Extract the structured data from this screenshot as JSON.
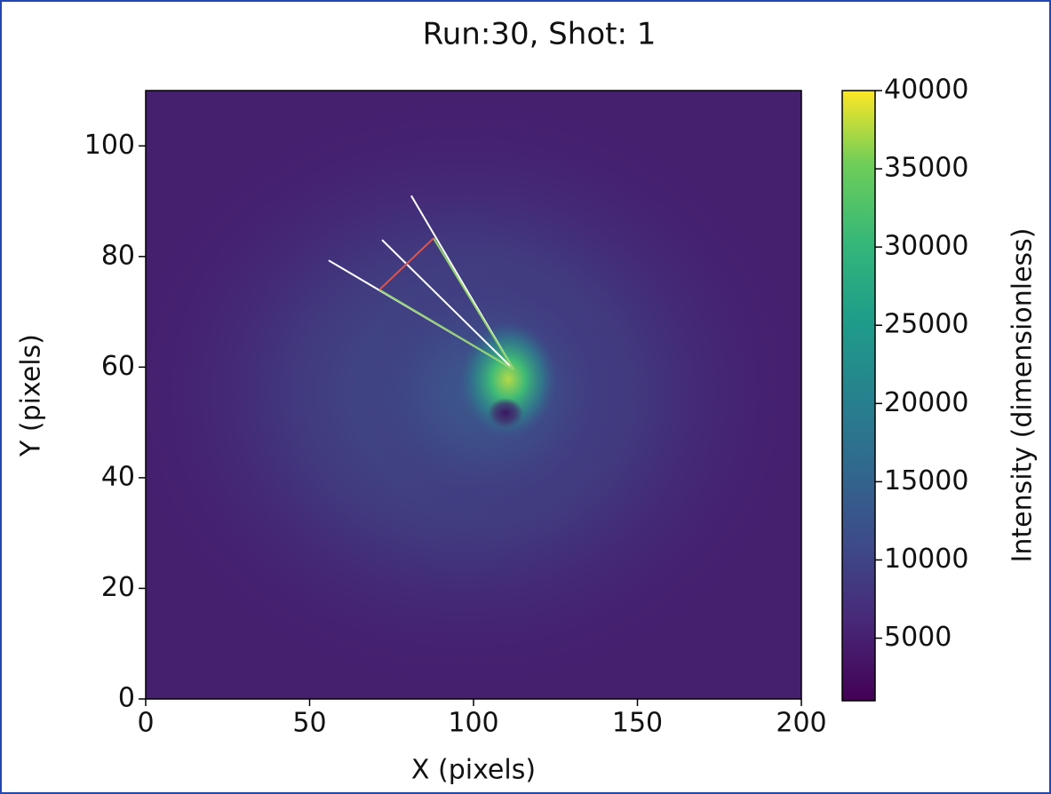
{
  "chart_data": {
    "type": "heatmap",
    "title": "Run:30, Shot: 1",
    "x_label": "X (pixels)",
    "y_label": "Y (pixels)",
    "xlim": [
      0,
      200
    ],
    "ylim": [
      0,
      110
    ],
    "xticks": [
      0,
      50,
      100,
      150,
      200
    ],
    "yticks": [
      0,
      20,
      40,
      60,
      80,
      100
    ],
    "colormap": "viridis",
    "colorbar_label": "Intensity (dimensionless)",
    "clim": [
      1000,
      40000
    ],
    "colorbar_ticks": [
      5000,
      10000,
      15000,
      20000,
      25000,
      30000,
      35000,
      40000
    ],
    "overlay_lines": [
      {
        "color": "#ffffff",
        "x": [
          55.8,
          112.2
        ],
        "y": [
          79.3,
          59.6
        ]
      },
      {
        "color": "#ffffff",
        "x": [
          72.1,
          112.2
        ],
        "y": [
          83.0,
          59.6
        ]
      },
      {
        "color": "#ffffff",
        "x": [
          81.0,
          112.2
        ],
        "y": [
          91.0,
          59.6
        ]
      },
      {
        "color": "#8fd16a",
        "x": [
          71.3,
          112.2
        ],
        "y": [
          74.0,
          59.6
        ]
      },
      {
        "color": "#8fd16a",
        "x": [
          87.8,
          112.2
        ],
        "y": [
          83.3,
          59.6
        ]
      },
      {
        "color": "#e0554a",
        "x": [
          71.3,
          87.8
        ],
        "y": [
          74.0,
          83.3
        ]
      }
    ]
  }
}
